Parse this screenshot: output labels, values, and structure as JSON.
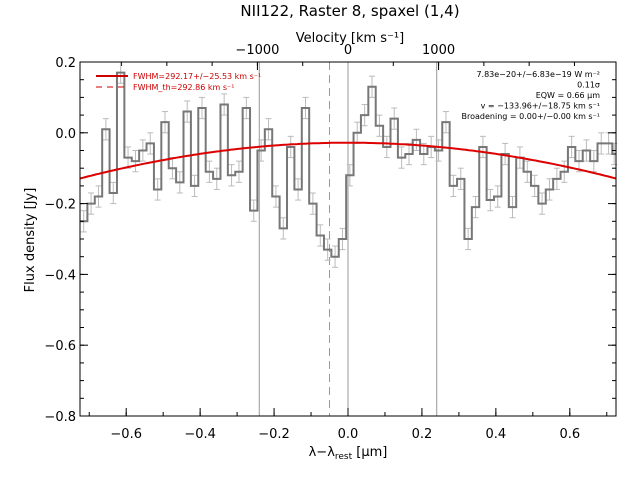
{
  "chart_data": {
    "type": "line",
    "title": "NII122, Raster 8, spaxel (1,4)",
    "xlabel": "λ−λ",
    "xlabel_sub": "rest",
    "xlabel_unit": " [μm]",
    "ylabel": "Flux density [Jy]",
    "top_axis_label": "Velocity [km s⁻¹]",
    "top_axis_ticks": [
      {
        "value": -1000,
        "label": "−1000"
      },
      {
        "value": 0,
        "label": "0"
      },
      {
        "value": 1000,
        "label": "1000"
      }
    ],
    "velocity_per_micron": 4081,
    "xlim": [
      -0.725,
      0.725
    ],
    "ylim": [
      -0.8,
      0.2
    ],
    "x_ticks": [
      {
        "value": -0.6,
        "label": "−0.6"
      },
      {
        "value": -0.4,
        "label": "−0.4"
      },
      {
        "value": -0.2,
        "label": "−0.2"
      },
      {
        "value": 0.0,
        "label": "0.0"
      },
      {
        "value": 0.2,
        "label": "0.2"
      },
      {
        "value": 0.4,
        "label": "0.4"
      },
      {
        "value": 0.6,
        "label": "0.6"
      }
    ],
    "y_ticks": [
      {
        "value": -0.8,
        "label": "−0.8"
      },
      {
        "value": -0.6,
        "label": "−0.6"
      },
      {
        "value": -0.4,
        "label": "−0.4"
      },
      {
        "value": -0.2,
        "label": "−0.2"
      },
      {
        "value": 0.0,
        "label": "0.0"
      },
      {
        "value": 0.2,
        "label": "0.2"
      }
    ],
    "bin_edges": [
      -0.725,
      -0.705,
      -0.685,
      -0.665,
      -0.645,
      -0.625,
      -0.605,
      -0.585,
      -0.565,
      -0.545,
      -0.525,
      -0.505,
      -0.485,
      -0.465,
      -0.445,
      -0.425,
      -0.405,
      -0.385,
      -0.365,
      -0.345,
      -0.325,
      -0.305,
      -0.285,
      -0.265,
      -0.245,
      -0.225,
      -0.205,
      -0.185,
      -0.165,
      -0.145,
      -0.125,
      -0.105,
      -0.085,
      -0.065,
      -0.045,
      -0.025,
      -0.005,
      0.015,
      0.035,
      0.055,
      0.075,
      0.095,
      0.115,
      0.135,
      0.155,
      0.175,
      0.195,
      0.215,
      0.235,
      0.255,
      0.275,
      0.295,
      0.315,
      0.335,
      0.355,
      0.375,
      0.395,
      0.415,
      0.435,
      0.455,
      0.475,
      0.495,
      0.515,
      0.535,
      0.555,
      0.575,
      0.595,
      0.615,
      0.635,
      0.655,
      0.675,
      0.695,
      0.715,
      0.725
    ],
    "flux": [
      -0.25,
      -0.2,
      -0.18,
      0.01,
      -0.17,
      0.17,
      -0.07,
      -0.08,
      -0.05,
      -0.03,
      -0.16,
      0.03,
      -0.1,
      -0.14,
      0.06,
      -0.15,
      0.07,
      -0.11,
      -0.13,
      0.08,
      -0.12,
      -0.11,
      0.07,
      -0.22,
      -0.05,
      0.01,
      -0.18,
      -0.27,
      -0.04,
      -0.16,
      0.07,
      -0.2,
      -0.29,
      -0.33,
      -0.35,
      -0.3,
      -0.12,
      0.0,
      0.05,
      0.13,
      0.02,
      -0.04,
      0.04,
      -0.07,
      -0.06,
      -0.02,
      -0.06,
      -0.04,
      -0.05,
      0.03,
      -0.15,
      -0.13,
      -0.3,
      -0.21,
      -0.04,
      -0.19,
      -0.18,
      -0.06,
      -0.21,
      -0.07,
      -0.11,
      -0.15,
      -0.2,
      -0.16,
      -0.13,
      -0.11,
      -0.04,
      -0.08,
      -0.05,
      -0.08,
      -0.03,
      -0.03,
      -0.06
    ],
    "flux_err": 0.03,
    "fit_gaussian": {
      "amplitude": 0.01,
      "center": -0.0,
      "sigma": 0.5,
      "baseline": -0.05,
      "curvature": 0.18
    },
    "vertical_lines": [
      {
        "x": -0.24,
        "style": "solid"
      },
      {
        "x": 0.0,
        "style": "solid"
      },
      {
        "x": 0.24,
        "style": "solid"
      },
      {
        "x": -0.05,
        "style": "dashed"
      }
    ],
    "legend": [
      {
        "label": "FWHM=292.17+/−25.53 km s⁻¹",
        "style": "solid",
        "color": "#cc0000"
      },
      {
        "label": "FWHM_th=292.86 km s⁻¹",
        "style": "dashed",
        "color": "#cc0000"
      }
    ],
    "annotations": [
      "7.83e−20+/−6.83e−19 W m⁻²",
      "0.11σ",
      "EQW = 0.66 μm",
      "v = −133.96+/−18.75 km s⁻¹",
      "Broadening = 0.00+/−0.00 km s⁻¹"
    ],
    "colors": {
      "data": "#777777",
      "error": "#bbbbbb",
      "fit": "#dd0000",
      "axes": "#000000",
      "vline": "#999999"
    }
  }
}
